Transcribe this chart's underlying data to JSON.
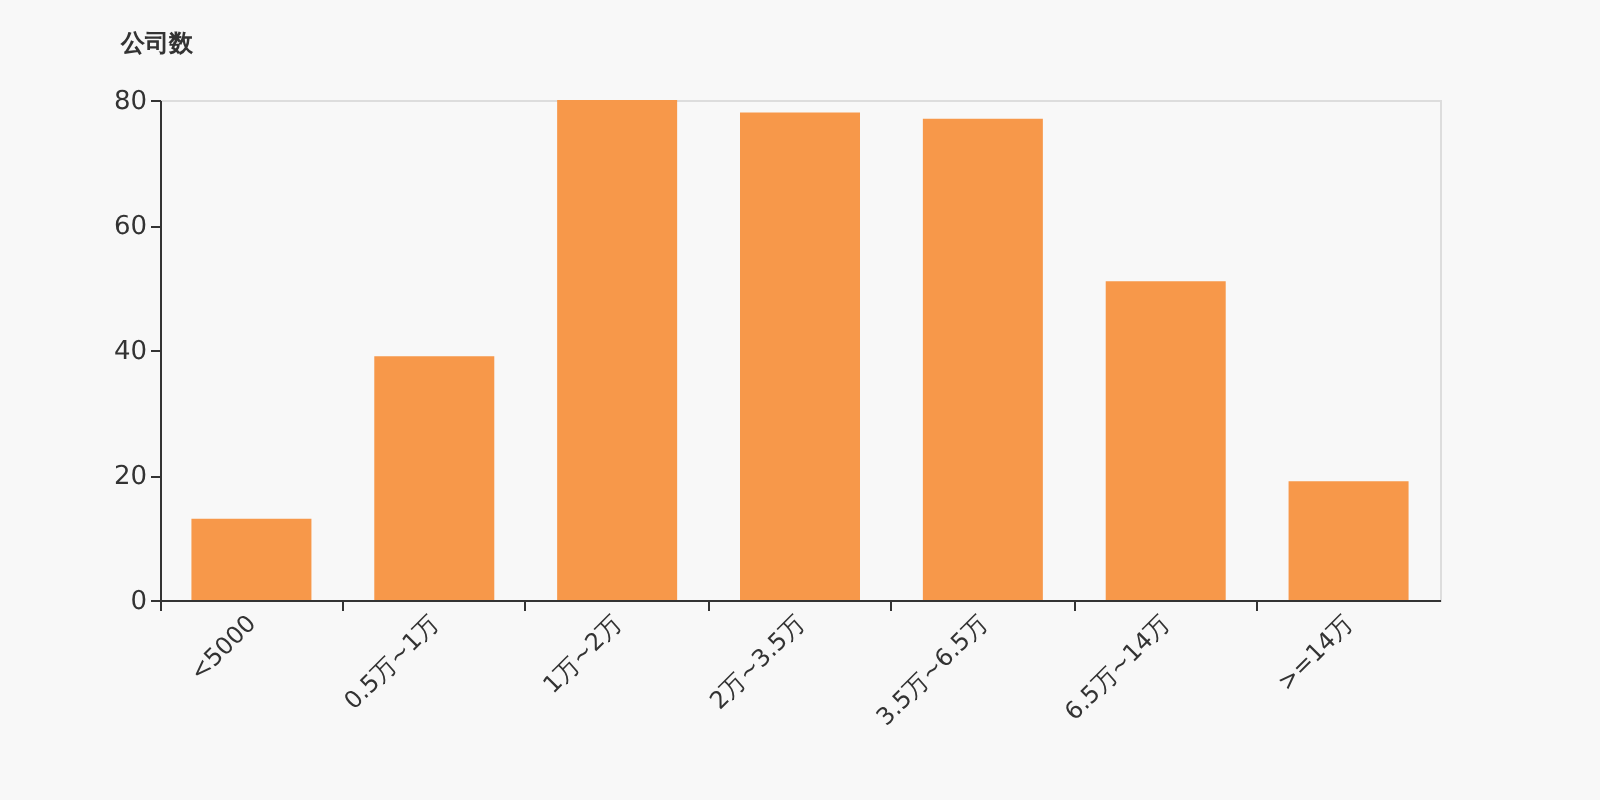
{
  "chart_data": {
    "type": "bar",
    "ylabel": "公司数",
    "categories": [
      "<5000",
      "0.5万~1万",
      "1万~2万",
      "2万~3.5万",
      "3.5万~6.5万",
      "6.5万~14万",
      ">=14万"
    ],
    "values": [
      13,
      39,
      80,
      78,
      77,
      51,
      19
    ],
    "color": "#f7984a",
    "ylim": [
      0,
      80
    ],
    "yticks": [
      0,
      20,
      40,
      60,
      80
    ],
    "grid": false
  }
}
